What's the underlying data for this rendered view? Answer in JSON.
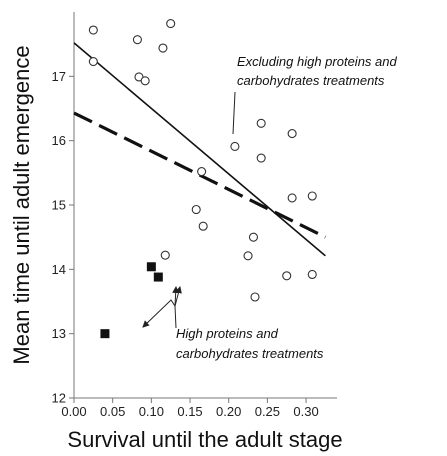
{
  "chart_data": {
    "type": "scatter",
    "xlabel": "Survival until the adult stage",
    "ylabel": "Mean time until adult emergence",
    "xlim": [
      0.0,
      0.34
    ],
    "ylim": [
      12,
      18
    ],
    "xticks": [
      "0.00",
      "0.05",
      "0.10",
      "0.15",
      "0.20",
      "0.25",
      "0.30"
    ],
    "yticks": [
      "12",
      "13",
      "14",
      "15",
      "16",
      "17"
    ],
    "grid": false,
    "series": [
      {
        "marker": "open-circle",
        "x": [
          0.025,
          0.025,
          0.082,
          0.084,
          0.092,
          0.115,
          0.125,
          0.118,
          0.165,
          0.158,
          0.167,
          0.208,
          0.242,
          0.242,
          0.225,
          0.232,
          0.234,
          0.282,
          0.282,
          0.275,
          0.308,
          0.308
        ],
        "y": [
          17.72,
          17.23,
          17.57,
          16.99,
          16.93,
          17.44,
          17.82,
          14.22,
          15.52,
          14.93,
          14.67,
          15.91,
          16.27,
          15.73,
          14.21,
          14.5,
          13.57,
          16.11,
          15.11,
          13.9,
          15.14,
          13.92
        ]
      },
      {
        "marker": "filled-square",
        "x": [
          0.04,
          0.1,
          0.109
        ],
        "y": [
          13.0,
          14.04,
          13.88
        ]
      }
    ],
    "lines": [
      {
        "style": "solid",
        "x": [
          0.0,
          0.325
        ],
        "y": [
          17.52,
          14.21
        ]
      },
      {
        "style": "dashed",
        "x": [
          0.0,
          0.325
        ],
        "y": [
          16.43,
          14.5
        ]
      }
    ],
    "annotations": {
      "excluding_line1": "Excluding high proteins and",
      "excluding_line2": "carbohydrates treatments",
      "high_line1": "High proteins and",
      "high_line2": "carbohydrates treatments"
    }
  }
}
